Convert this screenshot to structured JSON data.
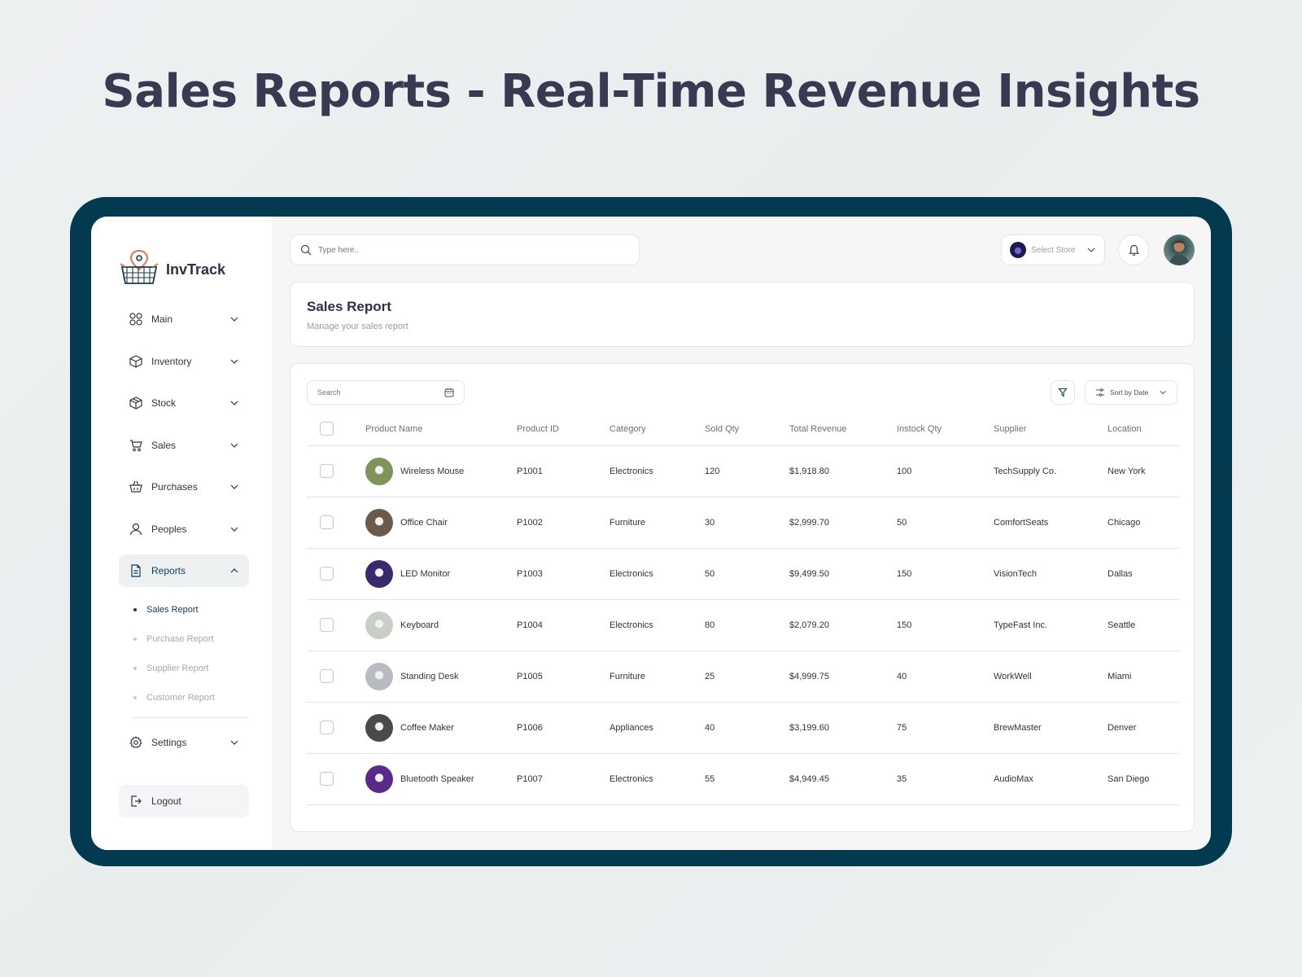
{
  "headline": "Sales Reports - Real-Time Revenue Insights",
  "app": {
    "name": "InvTrack"
  },
  "sidebar": {
    "items": [
      {
        "label": "Main",
        "icon": "grid-icon"
      },
      {
        "label": "Inventory",
        "icon": "box-icon"
      },
      {
        "label": "Stock",
        "icon": "package-icon"
      },
      {
        "label": "Sales",
        "icon": "cart-icon"
      },
      {
        "label": "Purchases",
        "icon": "basket-icon"
      },
      {
        "label": "Peoples",
        "icon": "user-icon"
      },
      {
        "label": "Reports",
        "icon": "report-icon",
        "expanded": true
      }
    ],
    "sub_items": [
      {
        "label": "Sales Report",
        "active": true
      },
      {
        "label": "Purchase Report"
      },
      {
        "label": "Supplier Report"
      },
      {
        "label": "Customer Report"
      }
    ],
    "settings_label": "Settings",
    "logout_label": "Logout"
  },
  "topbar": {
    "search_placeholder": "Type here..",
    "store_label": "Select Store"
  },
  "page": {
    "title": "Sales Report",
    "subtitle": "Manage your sales report"
  },
  "table": {
    "search_label": "Search",
    "sort_label": "Sort by Date",
    "headers": [
      "Product Name",
      "Product ID",
      "Category",
      "Sold Qty",
      "Total Revenue",
      "Instock Qty",
      "Supplier",
      "Location"
    ],
    "rows": [
      {
        "name": "Wireless Mouse",
        "id": "P1001",
        "category": "Electronics",
        "sold": "120",
        "revenue": "$1,918.80",
        "instock": "100",
        "supplier": "TechSupply Co.",
        "location": "New York",
        "thumb": "#7d9558"
      },
      {
        "name": "Office Chair",
        "id": "P1002",
        "category": "Furniture",
        "sold": "30",
        "revenue": "$2,999.70",
        "instock": "50",
        "supplier": "ComfortSeats",
        "location": "Chicago",
        "thumb": "#6b5a4c"
      },
      {
        "name": "LED Monitor",
        "id": "P1003",
        "category": "Electronics",
        "sold": "50",
        "revenue": "$9,499.50",
        "instock": "150",
        "supplier": "VisionTech",
        "location": "Dallas",
        "thumb": "#3a2a6b"
      },
      {
        "name": "Keyboard",
        "id": "P1004",
        "category": "Electronics",
        "sold": "80",
        "revenue": "$2,079.20",
        "instock": "150",
        "supplier": "TypeFast Inc.",
        "location": "Seattle",
        "thumb": "#c9cfc6"
      },
      {
        "name": "Standing Desk",
        "id": "P1005",
        "category": "Furniture",
        "sold": "25",
        "revenue": "$4,999.75",
        "instock": "40",
        "supplier": "WorkWell",
        "location": "Miami",
        "thumb": "#b8bcc2"
      },
      {
        "name": "Coffee Maker",
        "id": "P1006",
        "category": "Appliances",
        "sold": "40",
        "revenue": "$3,199.60",
        "instock": "75",
        "supplier": "BrewMaster",
        "location": "Denver",
        "thumb": "#4a4a4a"
      },
      {
        "name": "Bluetooth Speaker",
        "id": "P1007",
        "category": "Electronics",
        "sold": "55",
        "revenue": "$4,949.45",
        "instock": "35",
        "supplier": "AudioMax",
        "location": "San Diego",
        "thumb": "#5a2a8a"
      }
    ]
  },
  "colors": {
    "frame": "#033a4f",
    "accent": "#0f3b52",
    "logo_pin": "#e0704a"
  }
}
